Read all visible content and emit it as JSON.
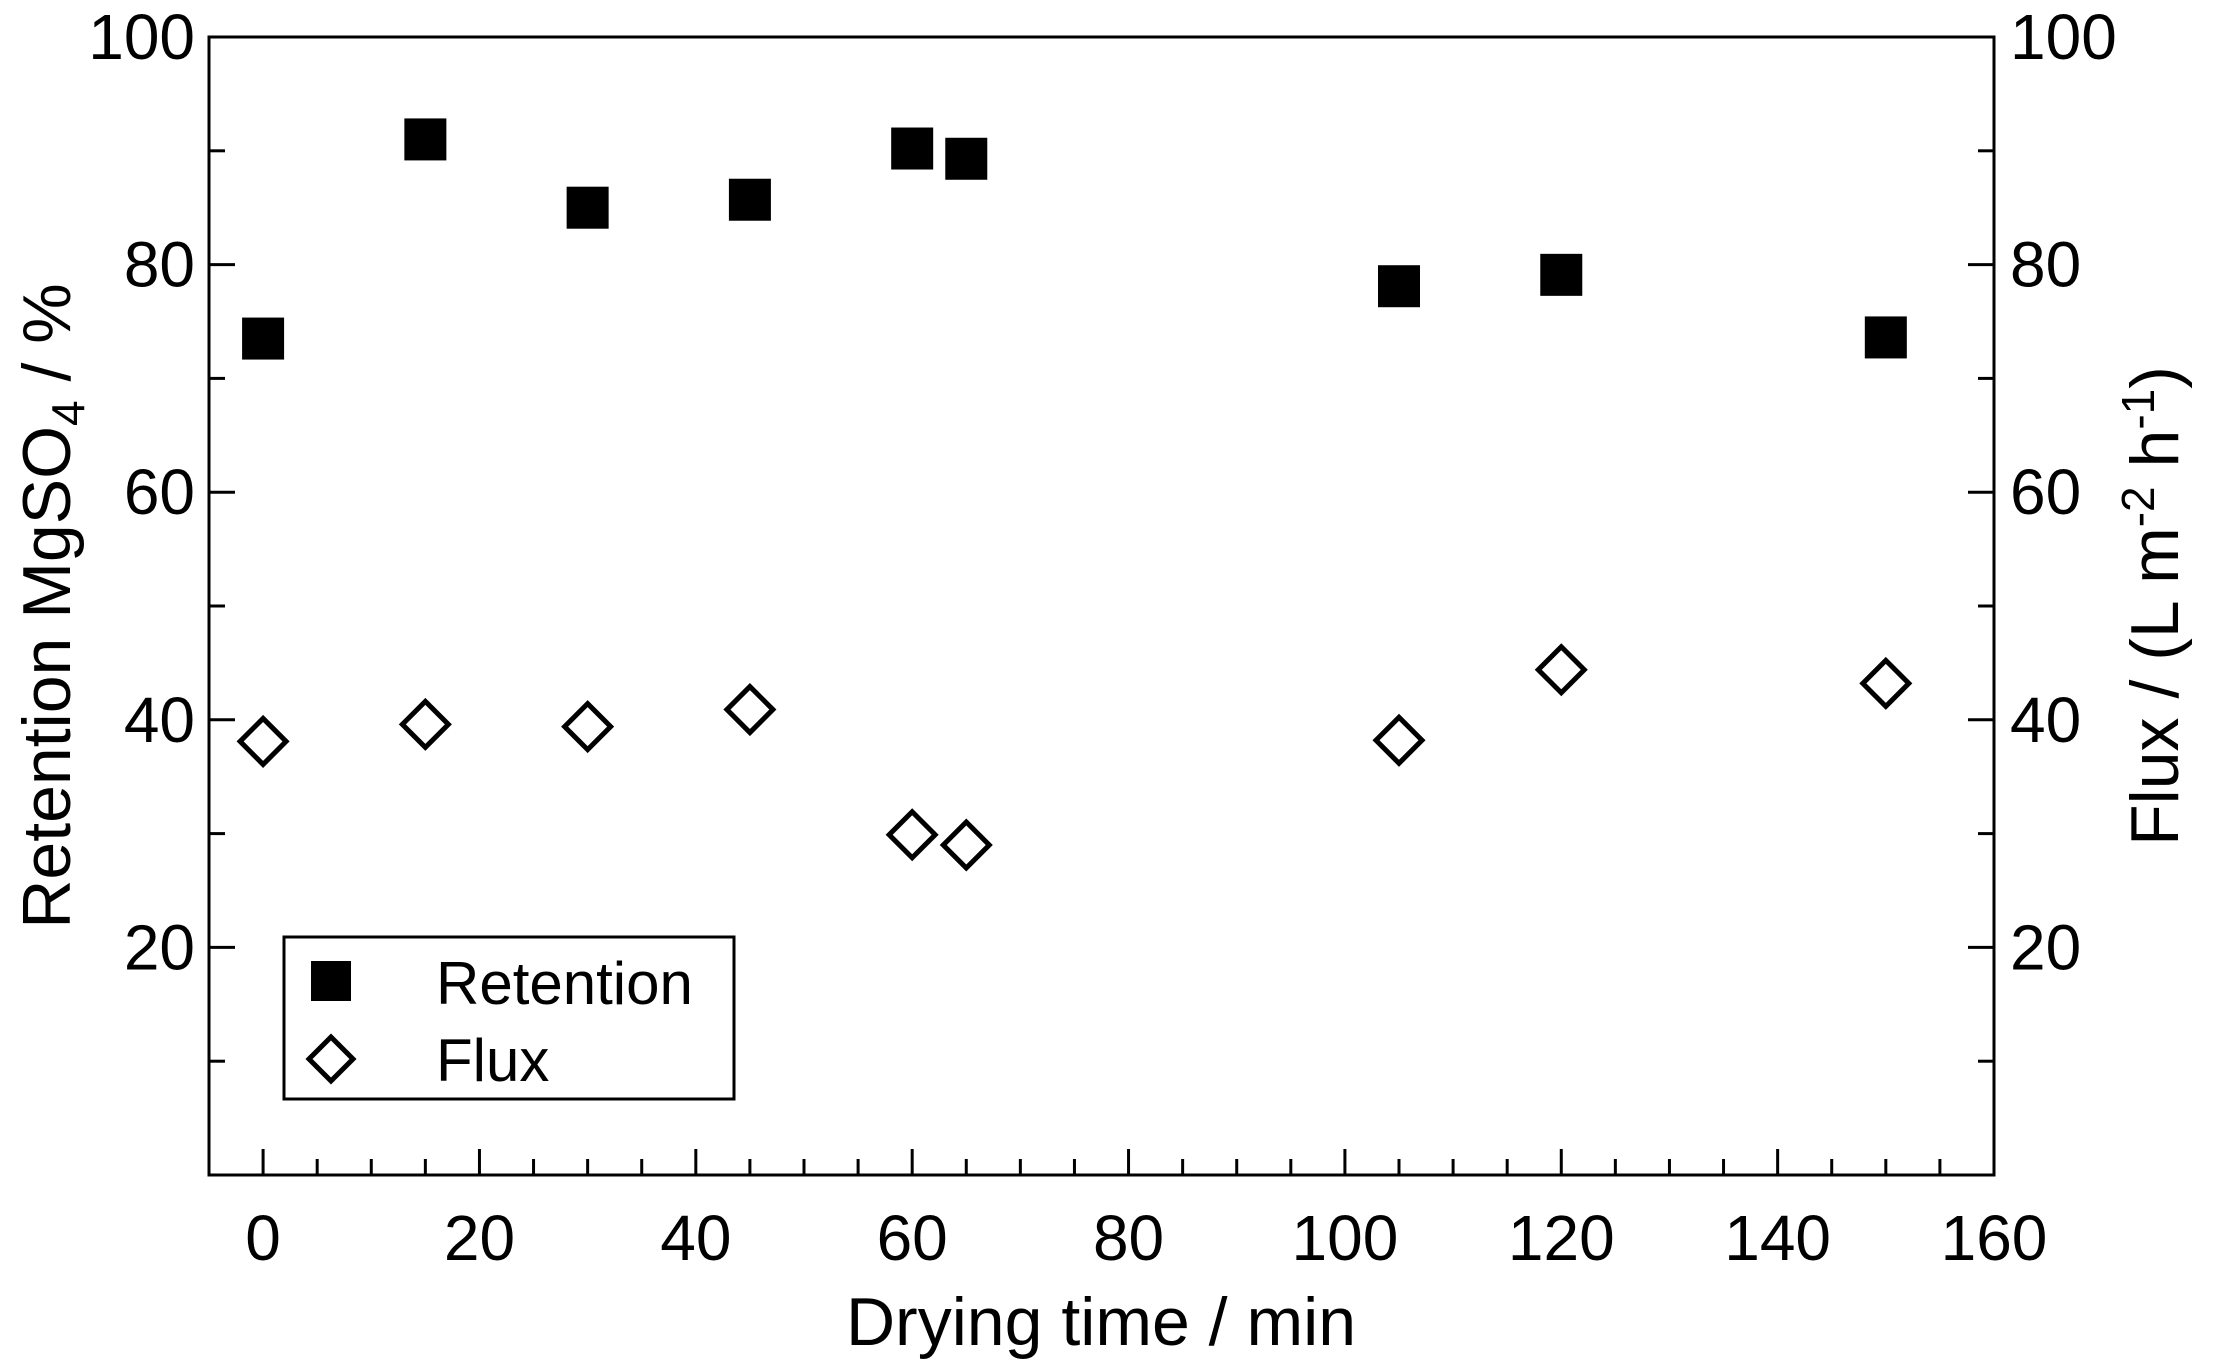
{
  "chart_data": {
    "type": "scatter",
    "title": "",
    "xlabel": "Drying time / min",
    "ylabel_left": {
      "prefix": "Retention MgSO",
      "sub": "4",
      "suffix": " / %"
    },
    "ylabel_right": {
      "a": "Flux / (L m",
      "sup1": "-2",
      "b": " h",
      "sup2": "-1",
      "c": ")"
    },
    "xlim": [
      -5,
      160
    ],
    "ylim_left": [
      0,
      100
    ],
    "ylim_right": [
      0,
      100
    ],
    "xticks_major": [
      0,
      20,
      40,
      60,
      80,
      100,
      120,
      140,
      160
    ],
    "yticks_major": [
      20,
      40,
      60,
      80,
      100
    ],
    "legend_position": "bottom-left",
    "grid": false,
    "series": [
      {
        "name": "Retention",
        "marker": "filled-square",
        "axis": "left",
        "x": [
          0,
          15,
          30,
          45,
          60,
          65,
          105,
          120,
          150
        ],
        "y": [
          73.5,
          91,
          85,
          85.7,
          90.2,
          89.3,
          78.1,
          79.1,
          73.6
        ]
      },
      {
        "name": "Flux",
        "marker": "open-diamond",
        "axis": "right",
        "x": [
          0,
          15,
          30,
          45,
          60,
          65,
          105,
          120,
          150
        ],
        "y": [
          38.1,
          39.6,
          39.4,
          40.9,
          29.9,
          29,
          38.2,
          44.4,
          43.2
        ]
      }
    ]
  }
}
